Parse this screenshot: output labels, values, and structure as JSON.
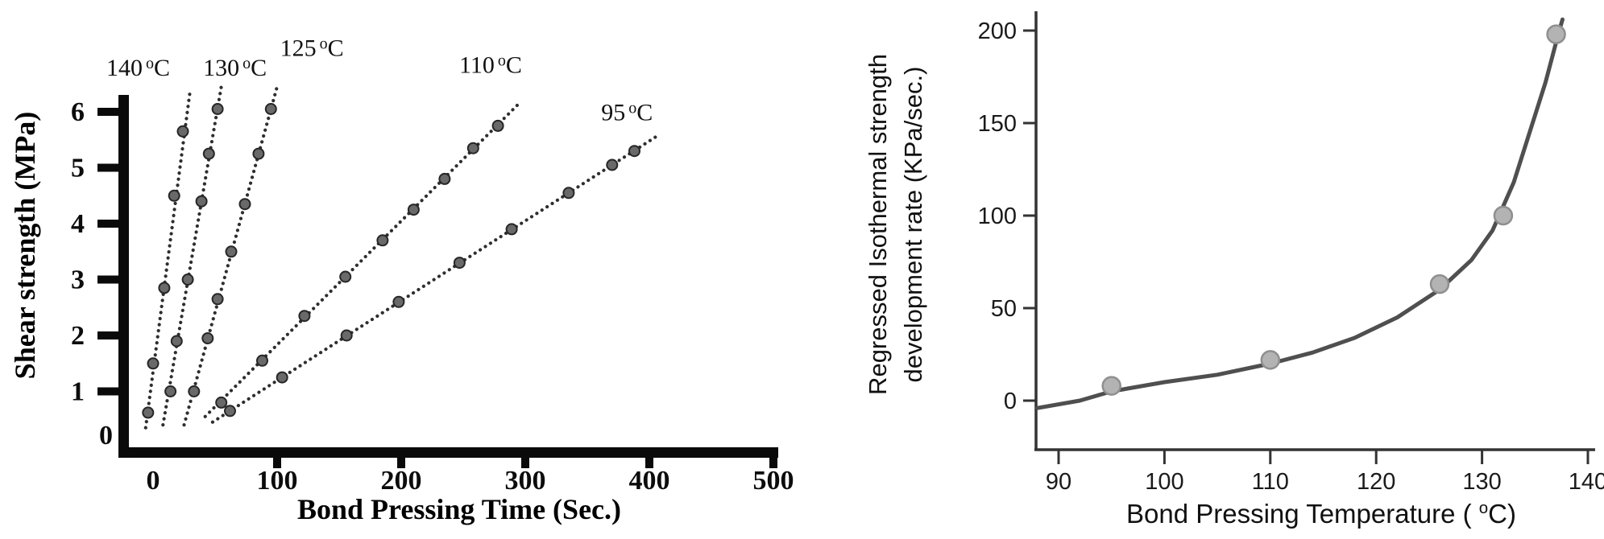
{
  "chart_data": [
    {
      "type": "scatter",
      "xlabel": "Bond Pressing Time (Sec.)",
      "ylabel": "Shear strength (MPa)",
      "xlim": [
        -30,
        500
      ],
      "ylim": [
        0,
        7.2
      ],
      "xticks": [
        0,
        100,
        200,
        300,
        400,
        500
      ],
      "yticks": [
        0,
        1,
        2,
        3,
        4,
        5,
        6
      ],
      "grid": false,
      "line_style": "dotted",
      "degree_symbol": "o",
      "temp_unit": "C",
      "colors": {
        "axis": "#0a0a0a",
        "line": "#2e2e2e",
        "marker_fill": "#696969",
        "marker_edge": "#262626"
      },
      "series": [
        {
          "name": "140 oC",
          "label_value": "140",
          "label_pos": [
            -12,
            6.65
          ],
          "fit_line": [
            [
              -6,
              0.35
            ],
            [
              30,
              6.4
            ]
          ],
          "points": [
            [
              -4,
              0.62
            ],
            [
              0,
              1.5
            ],
            [
              9,
              2.85
            ],
            [
              17,
              4.5
            ],
            [
              24,
              5.65
            ]
          ]
        },
        {
          "name": "130 oC",
          "label_value": "130",
          "label_pos": [
            66,
            6.65
          ],
          "fit_line": [
            [
              8,
              0.4
            ],
            [
              55,
              6.45
            ]
          ],
          "points": [
            [
              14,
              1.0
            ],
            [
              19,
              1.9
            ],
            [
              28,
              3.0
            ],
            [
              39,
              4.4
            ],
            [
              45,
              5.25
            ],
            [
              52,
              6.05
            ]
          ]
        },
        {
          "name": "125 oC",
          "label_value": "125",
          "label_pos": [
            128,
            7.0
          ],
          "fit_line": [
            [
              25,
              0.4
            ],
            [
              100,
              6.45
            ]
          ],
          "points": [
            [
              33,
              1.0
            ],
            [
              44,
              1.95
            ],
            [
              52,
              2.65
            ],
            [
              63,
              3.5
            ],
            [
              74,
              4.35
            ],
            [
              85,
              5.25
            ],
            [
              95,
              6.05
            ]
          ]
        },
        {
          "name": "110 oC",
          "label_value": "110",
          "label_pos": [
            272,
            6.7
          ],
          "fit_line": [
            [
              42,
              0.55
            ],
            [
              295,
              6.15
            ]
          ],
          "points": [
            [
              55,
              0.8
            ],
            [
              88,
              1.55
            ],
            [
              122,
              2.35
            ],
            [
              155,
              3.05
            ],
            [
              185,
              3.7
            ],
            [
              210,
              4.25
            ],
            [
              235,
              4.8
            ],
            [
              258,
              5.35
            ],
            [
              278,
              5.75
            ]
          ]
        },
        {
          "name": "95 oC",
          "label_value": "95",
          "label_pos": [
            382,
            5.85
          ],
          "fit_line": [
            [
              48,
              0.45
            ],
            [
              405,
              5.55
            ]
          ],
          "points": [
            [
              62,
              0.65
            ],
            [
              104,
              1.25
            ],
            [
              156,
              2.0
            ],
            [
              198,
              2.6
            ],
            [
              247,
              3.3
            ],
            [
              289,
              3.9
            ],
            [
              335,
              4.55
            ],
            [
              370,
              5.05
            ],
            [
              388,
              5.3
            ]
          ]
        }
      ]
    },
    {
      "type": "scatter",
      "xlabel_prefix": "Bond Pressing Temperature ( ",
      "xlabel_degree": "o",
      "xlabel_suffix": "C)",
      "ylabel_line1": "Regressed Isothermal strength",
      "ylabel_line2": "development rate (KPa/sec.)",
      "xlim": [
        88,
        140
      ],
      "ylim": [
        -25,
        210
      ],
      "xticks": [
        90,
        100,
        110,
        120,
        130,
        140
      ],
      "yticks": [
        0,
        50,
        100,
        150,
        200
      ],
      "points": [
        [
          95,
          8
        ],
        [
          110,
          22
        ],
        [
          126,
          63
        ],
        [
          132,
          100
        ],
        [
          137,
          198
        ]
      ],
      "curve": [
        [
          88,
          -4
        ],
        [
          92,
          0
        ],
        [
          95,
          5
        ],
        [
          100,
          10
        ],
        [
          105,
          14
        ],
        [
          110,
          20
        ],
        [
          114,
          26
        ],
        [
          118,
          34
        ],
        [
          122,
          45
        ],
        [
          126,
          60
        ],
        [
          129,
          76
        ],
        [
          131,
          92
        ],
        [
          133,
          118
        ],
        [
          134.5,
          145
        ],
        [
          136,
          172
        ],
        [
          137.2,
          198
        ],
        [
          137.6,
          206
        ]
      ],
      "colors": {
        "curve": "#4f4f4f",
        "marker_fill": "#b3b3b3",
        "marker_edge": "#8f8f8f",
        "axis": "#333333"
      }
    }
  ]
}
